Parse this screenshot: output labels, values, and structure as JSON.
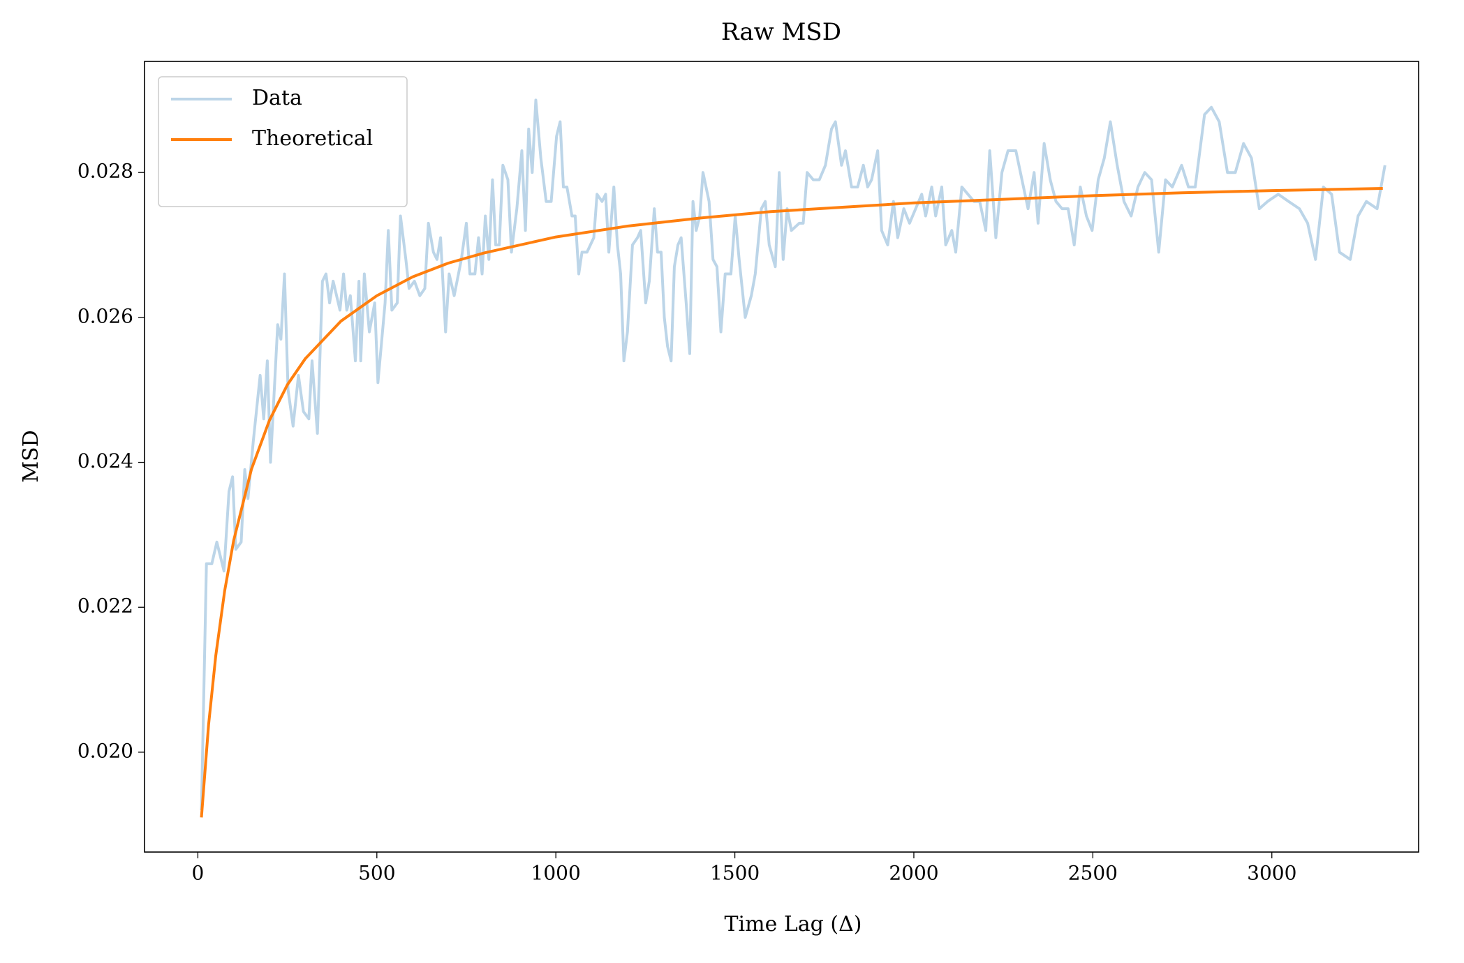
{
  "chart_data": {
    "type": "line",
    "title": "Raw MSD",
    "x_label": "Time Lag (Δ)",
    "y_label": "MSD",
    "xlim": [
      -149,
      3410
    ],
    "ylim": [
      0.018622,
      0.029533
    ],
    "xticks": [
      0,
      500,
      1000,
      1500,
      2000,
      2500,
      3000
    ],
    "yticks": [
      {
        "value": 0.02,
        "label": "0.020"
      },
      0.022,
      0.024,
      0.026,
      0.028
    ],
    "grid": false,
    "legend": "upper left",
    "series": [
      {
        "name": "Data",
        "color": "#bcd5e8",
        "x": [
          10,
          24,
          39,
          53,
          73,
          87,
          97,
          106,
          121,
          131,
          140,
          155,
          174,
          184,
          194,
          203,
          223,
          232,
          242,
          252,
          266,
          281,
          295,
          310,
          319,
          334,
          348,
          358,
          368,
          378,
          397,
          407,
          416,
          426,
          440,
          450,
          455,
          465,
          479,
          494,
          503,
          523,
          532,
          542,
          557,
          566,
          581,
          590,
          605,
          620,
          634,
          644,
          658,
          668,
          678,
          692,
          702,
          716,
          736,
          750,
          760,
          774,
          784,
          794,
          803,
          813,
          823,
          832,
          842,
          852,
          866,
          876,
          891,
          905,
          915,
          924,
          934,
          944,
          958,
          973,
          987,
          1002,
          1012,
          1021,
          1031,
          1045,
          1054,
          1064,
          1073,
          1087,
          1106,
          1115,
          1129,
          1139,
          1148,
          1162,
          1172,
          1181,
          1190,
          1200,
          1214,
          1228,
          1237,
          1251,
          1261,
          1275,
          1284,
          1294,
          1303,
          1312,
          1322,
          1331,
          1341,
          1350,
          1364,
          1374,
          1383,
          1392,
          1402,
          1411,
          1428,
          1439,
          1450,
          1461,
          1473,
          1489,
          1501,
          1512,
          1529,
          1546,
          1557,
          1574,
          1585,
          1596,
          1613,
          1624,
          1635,
          1646,
          1658,
          1680,
          1691,
          1702,
          1719,
          1736,
          1753,
          1770,
          1781,
          1798,
          1809,
          1826,
          1843,
          1859,
          1871,
          1882,
          1899,
          1910,
          1927,
          1943,
          1955,
          1972,
          1988,
          2005,
          2022,
          2033,
          2050,
          2061,
          2078,
          2089,
          2106,
          2117,
          2134,
          2151,
          2168,
          2184,
          2201,
          2212,
          2229,
          2246,
          2263,
          2285,
          2302,
          2319,
          2336,
          2347,
          2364,
          2381,
          2397,
          2414,
          2431,
          2448,
          2465,
          2482,
          2498,
          2515,
          2532,
          2549,
          2568,
          2587,
          2607,
          2626,
          2645,
          2664,
          2684,
          2703,
          2722,
          2748,
          2767,
          2786,
          2812,
          2831,
          2853,
          2876,
          2898,
          2921,
          2943,
          2965,
          2988,
          3018,
          3047,
          3077,
          3100,
          3122,
          3144,
          3167,
          3189,
          3219,
          3241,
          3264,
          3294,
          3316
        ],
        "values": [
          0.0192,
          0.0226,
          0.0226,
          0.0229,
          0.0225,
          0.0236,
          0.0238,
          0.0228,
          0.0229,
          0.0239,
          0.0235,
          0.0243,
          0.0252,
          0.0246,
          0.0254,
          0.024,
          0.0259,
          0.0257,
          0.0266,
          0.025,
          0.0245,
          0.0252,
          0.0247,
          0.0246,
          0.0254,
          0.0244,
          0.0265,
          0.0266,
          0.0262,
          0.0265,
          0.0261,
          0.0266,
          0.0261,
          0.0263,
          0.0254,
          0.0265,
          0.0254,
          0.0266,
          0.0258,
          0.0262,
          0.0251,
          0.0262,
          0.0272,
          0.0261,
          0.0262,
          0.0274,
          0.0268,
          0.0264,
          0.0265,
          0.0263,
          0.0264,
          0.0273,
          0.0269,
          0.0268,
          0.0271,
          0.0258,
          0.0266,
          0.0263,
          0.0268,
          0.0273,
          0.0266,
          0.0266,
          0.0271,
          0.0266,
          0.0274,
          0.0268,
          0.0279,
          0.027,
          0.027,
          0.0281,
          0.0279,
          0.0269,
          0.0275,
          0.0283,
          0.0272,
          0.0286,
          0.028,
          0.029,
          0.0282,
          0.0276,
          0.0276,
          0.0285,
          0.0287,
          0.0278,
          0.0278,
          0.0274,
          0.0274,
          0.0266,
          0.0269,
          0.0269,
          0.0271,
          0.0277,
          0.0276,
          0.0277,
          0.0269,
          0.0278,
          0.027,
          0.0266,
          0.0254,
          0.0258,
          0.027,
          0.0271,
          0.0272,
          0.0262,
          0.0265,
          0.0275,
          0.0269,
          0.0269,
          0.026,
          0.0256,
          0.0254,
          0.0267,
          0.027,
          0.0271,
          0.0262,
          0.0255,
          0.0276,
          0.0272,
          0.0274,
          0.028,
          0.0276,
          0.0268,
          0.0267,
          0.0258,
          0.0266,
          0.0266,
          0.0274,
          0.0268,
          0.026,
          0.0263,
          0.0266,
          0.0275,
          0.0276,
          0.027,
          0.0267,
          0.028,
          0.0268,
          0.0275,
          0.0272,
          0.0273,
          0.0273,
          0.028,
          0.0279,
          0.0279,
          0.0281,
          0.0286,
          0.0287,
          0.0281,
          0.0283,
          0.0278,
          0.0278,
          0.0281,
          0.0278,
          0.0279,
          0.0283,
          0.0272,
          0.027,
          0.0276,
          0.0271,
          0.0275,
          0.0273,
          0.0275,
          0.0277,
          0.0274,
          0.0278,
          0.0274,
          0.0278,
          0.027,
          0.0272,
          0.0269,
          0.0278,
          0.0277,
          0.0276,
          0.0276,
          0.0272,
          0.0283,
          0.0271,
          0.028,
          0.0283,
          0.0283,
          0.0279,
          0.0275,
          0.028,
          0.0273,
          0.0284,
          0.0279,
          0.0276,
          0.0275,
          0.0275,
          0.027,
          0.0278,
          0.0274,
          0.0272,
          0.0279,
          0.0282,
          0.0287,
          0.0281,
          0.0276,
          0.0274,
          0.0278,
          0.028,
          0.0279,
          0.0269,
          0.0279,
          0.0278,
          0.0281,
          0.0278,
          0.0278,
          0.0288,
          0.0289,
          0.0287,
          0.028,
          0.028,
          0.0284,
          0.0282,
          0.0275,
          0.0276,
          0.0277,
          0.0276,
          0.0275,
          0.0273,
          0.0268,
          0.0278,
          0.0277,
          0.0269,
          0.0268,
          0.0274,
          0.0276,
          0.0275,
          0.0281
        ]
      },
      {
        "name": "Theoretical",
        "color": "#ff7f0e",
        "x": [
          10,
          30,
          50,
          75,
          100,
          150,
          200,
          250,
          300,
          400,
          500,
          600,
          700,
          800,
          1000,
          1200,
          1400,
          1600,
          1800,
          2000,
          2250,
          2500,
          2750,
          3000,
          3310
        ],
        "values": [
          0.0191,
          0.02038,
          0.02133,
          0.02223,
          0.02292,
          0.02391,
          0.02458,
          0.02507,
          0.02543,
          0.02595,
          0.0263,
          0.02656,
          0.02675,
          0.02689,
          0.02711,
          0.02726,
          0.02737,
          0.02746,
          0.02752,
          0.02758,
          0.02763,
          0.02768,
          0.02772,
          0.02775,
          0.02778
        ]
      }
    ]
  }
}
